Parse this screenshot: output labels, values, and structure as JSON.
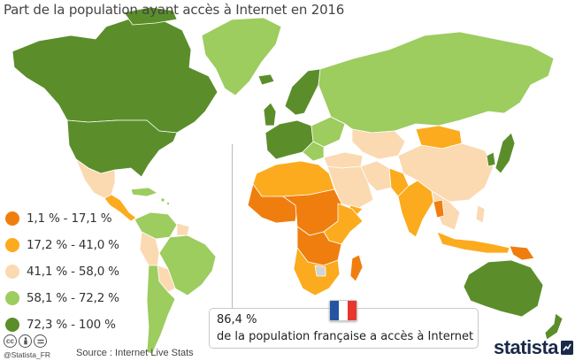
{
  "title": "Part de la population ayant accès à Internet en 2016",
  "colors": {
    "ocean": "#ffffff",
    "class1": "#f07e0f",
    "class2": "#fbab1d",
    "class3": "#fbd9b1",
    "class4": "#9dcc5f",
    "class5": "#5b8e2a",
    "nodata": "#d3d3d3",
    "border": "#ffffff"
  },
  "legend": {
    "items": [
      {
        "label": "1,1 % - 17,1 %",
        "color": "#f07e0f"
      },
      {
        "label": "17,2 % - 41,0 %",
        "color": "#fbab1d"
      },
      {
        "label": "41,1 % - 58,0 %",
        "color": "#fbd9b1"
      },
      {
        "label": "58,1 % - 72,2 %",
        "color": "#9dcc5f"
      },
      {
        "label": "72,3 % - 100 %",
        "color": "#5b8e2a"
      }
    ]
  },
  "callout": {
    "value": "86,4 %",
    "text": "de la population française a accès à Internet",
    "flag_colors": [
      "#2654a3",
      "#ffffff",
      "#e8352e"
    ]
  },
  "footer": {
    "handle": "@Statista_FR",
    "source": "Source : Internet Live Stats",
    "brand": "statista",
    "cc_icons": [
      "cc-icon",
      "by-icon",
      "nd-icon"
    ]
  }
}
